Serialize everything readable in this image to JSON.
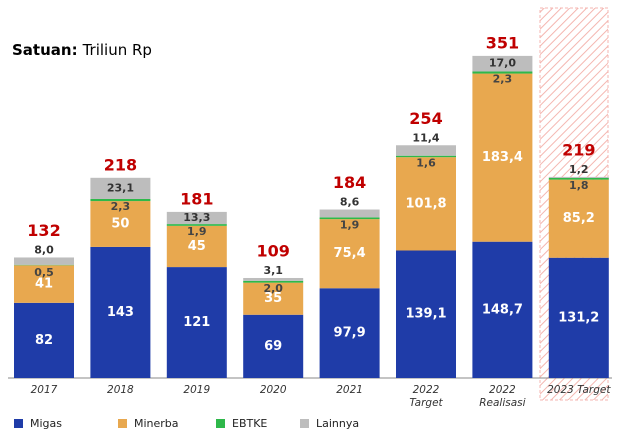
{
  "chart_data": {
    "type": "stacked_bar",
    "subtitle_label": "Satuan:",
    "subtitle": "Triliun Rp",
    "categories": [
      "2017",
      "2018",
      "2019",
      "2020",
      "2021",
      "2022\nTarget",
      "2022\nRealisasi",
      "2023 Target"
    ],
    "ylim": [
      0,
      360
    ],
    "series": [
      {
        "name": "Migas",
        "color": "#1f3ca8",
        "values": [
          82,
          143,
          121,
          69,
          97.9,
          139.1,
          148.7,
          131.2
        ],
        "value_labels": [
          "82",
          "143",
          "121",
          "69",
          "97,9",
          "139,1",
          "148,7",
          "131,2"
        ]
      },
      {
        "name": "Minerba",
        "color": "#e8a84f",
        "values": [
          41,
          50,
          45,
          35,
          75.4,
          101.8,
          183.4,
          85.2
        ],
        "value_labels": [
          "41",
          "50",
          "45",
          "35",
          "75,4",
          "101,8",
          "183,4",
          "85,2"
        ]
      },
      {
        "name": "EBTKE",
        "color": "#2eb84a",
        "values": [
          0.5,
          2.3,
          1.9,
          2.0,
          1.9,
          1.6,
          2.3,
          1.8
        ],
        "value_labels": [
          "0,5",
          "2,3",
          "1,9",
          "2,0",
          "1,9",
          "1,6",
          "2,3",
          "1,8"
        ]
      },
      {
        "name": "Lainnya",
        "color": "#bdbdbd",
        "values": [
          8.0,
          23.1,
          13.3,
          3.1,
          8.6,
          11.4,
          17.0,
          1.2
        ],
        "value_labels": [
          "8,0",
          "23,1",
          "13,3",
          "3,1",
          "8,6",
          "11,4",
          "17,0",
          "1,2"
        ]
      }
    ],
    "totals": [
      132,
      218,
      181,
      109,
      184,
      254,
      351,
      219
    ],
    "totals_color": "#c00000"
  }
}
